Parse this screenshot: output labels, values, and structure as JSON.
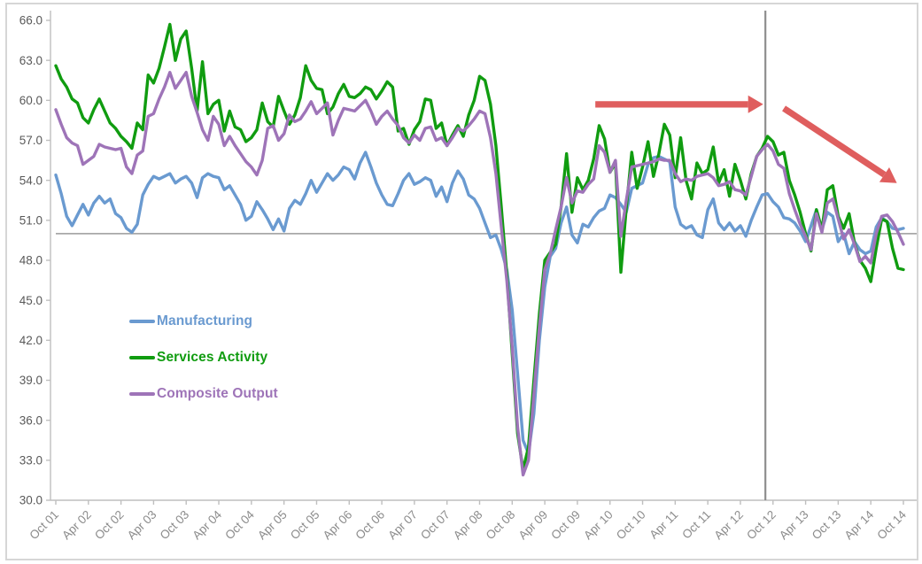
{
  "chart_data": {
    "type": "line",
    "title": "",
    "xlabel": "",
    "ylabel": "",
    "ylim": [
      30.0,
      66.0
    ],
    "y_step": 3.0,
    "y_tick_labels": [
      "66.0",
      "63.0",
      "60.0",
      "57.0",
      "54.0",
      "51.0",
      "48.0",
      "45.0",
      "42.0",
      "39.0",
      "36.0",
      "33.0",
      "30.0"
    ],
    "x_tick_labels": [
      "Oct 01",
      "Apr 02",
      "Oct 02",
      "Apr 03",
      "Oct 03",
      "Apr 04",
      "Oct 04",
      "Apr 05",
      "Oct 05",
      "Apr 06",
      "Oct 06",
      "Apr 07",
      "Oct 07",
      "Apr 08",
      "Oct 08",
      "Apr 09",
      "Oct 09",
      "Apr 10",
      "Oct 10",
      "Apr 11",
      "Oct 11",
      "Apr 12",
      "Oct 12",
      "Apr 13",
      "Oct 13",
      "Apr 14",
      "Oct 14"
    ],
    "x_months_per_tick": 6,
    "grid": "off",
    "legend_position": "inside-left-middle",
    "axis_color": "#bfbfbf",
    "y_label_color": "#595959",
    "x_label_color": "#8c8c8c",
    "series": [
      {
        "id": "manufacturing",
        "name": "Manufacturing",
        "color": "#6a9ad0",
        "values": [
          54.4,
          53.0,
          51.3,
          50.6,
          51.4,
          52.2,
          51.4,
          52.3,
          52.8,
          52.3,
          52.6,
          51.5,
          51.2,
          50.4,
          50.1,
          50.7,
          52.9,
          53.7,
          54.3,
          54.1,
          54.3,
          54.5,
          53.8,
          54.1,
          54.3,
          53.8,
          52.7,
          54.2,
          54.5,
          54.3,
          54.2,
          53.3,
          53.6,
          52.9,
          52.2,
          51.0,
          51.3,
          52.4,
          51.8,
          51.1,
          50.3,
          51.1,
          50.2,
          51.9,
          52.5,
          52.2,
          53.0,
          54.0,
          53.1,
          53.8,
          54.5,
          54.0,
          54.4,
          55.0,
          54.8,
          54.1,
          55.3,
          56.1,
          55.0,
          53.8,
          52.9,
          52.2,
          52.1,
          53.0,
          54.0,
          54.5,
          53.7,
          53.9,
          54.2,
          54.0,
          52.8,
          53.5,
          52.4,
          53.8,
          54.7,
          54.1,
          52.9,
          52.6,
          51.9,
          50.8,
          49.7,
          49.9,
          48.8,
          47.3,
          44.3,
          39.5,
          34.5,
          33.5,
          36.5,
          42.0,
          46.0,
          48.3,
          48.9,
          50.8,
          52.0,
          49.9,
          49.3,
          50.7,
          50.5,
          51.2,
          51.7,
          51.9,
          52.9,
          52.7,
          52.2,
          51.6,
          53.4,
          53.6,
          53.8,
          55.2,
          55.7,
          55.8,
          55.6,
          55.4,
          52.0,
          50.7,
          50.4,
          50.6,
          49.9,
          49.7,
          51.8,
          52.6,
          50.8,
          50.3,
          50.8,
          50.2,
          50.6,
          49.8,
          51.0,
          52.0,
          52.9,
          53.0,
          52.4,
          52.0,
          51.2,
          51.1,
          50.8,
          50.2,
          49.4,
          50.6,
          51.8,
          50.3,
          51.6,
          51.3,
          49.4,
          50.0,
          48.5,
          49.4,
          48.8,
          48.5,
          48.7,
          50.5,
          51.2,
          50.9,
          50.4,
          50.3,
          50.4
        ]
      },
      {
        "id": "services",
        "name": "Services Activity",
        "color": "#109c10",
        "values": [
          62.6,
          61.6,
          61.0,
          60.1,
          59.8,
          58.7,
          58.3,
          59.3,
          60.1,
          59.2,
          58.3,
          57.9,
          57.3,
          56.9,
          56.4,
          58.3,
          57.8,
          61.9,
          61.3,
          62.4,
          64.0,
          65.7,
          63.0,
          64.6,
          65.2,
          62.4,
          59.2,
          62.9,
          59.0,
          59.7,
          60.0,
          57.7,
          59.2,
          58.0,
          57.8,
          56.9,
          57.2,
          57.8,
          59.8,
          58.4,
          58.0,
          60.3,
          59.2,
          58.2,
          58.9,
          60.2,
          62.6,
          61.5,
          60.9,
          60.8,
          59.0,
          59.5,
          60.5,
          61.2,
          60.3,
          60.2,
          60.5,
          61.0,
          60.8,
          60.1,
          60.7,
          61.4,
          61.0,
          57.7,
          57.9,
          56.7,
          57.8,
          58.4,
          60.1,
          60.0,
          57.9,
          58.3,
          56.6,
          57.4,
          58.1,
          57.3,
          58.9,
          60.0,
          61.8,
          61.5,
          59.7,
          56.6,
          52.0,
          47.0,
          41.0,
          35.0,
          32.3,
          34.0,
          39.0,
          44.0,
          48.0,
          48.6,
          49.2,
          52.0,
          56.0,
          51.6,
          54.2,
          53.3,
          54.0,
          55.6,
          58.1,
          57.1,
          54.6,
          55.3,
          47.1,
          51.9,
          56.1,
          53.4,
          55.0,
          56.9,
          54.3,
          56.0,
          58.2,
          57.4,
          54.2,
          57.2,
          54.0,
          52.6,
          55.3,
          54.5,
          54.8,
          56.5,
          53.8,
          54.8,
          52.8,
          55.2,
          54.0,
          52.6,
          54.5,
          55.8,
          56.4,
          57.3,
          56.9,
          55.9,
          56.1,
          54.0,
          52.9,
          51.6,
          50.0,
          48.7,
          51.8,
          50.3,
          53.3,
          53.6,
          51.3,
          50.4,
          51.5,
          49.3,
          48.0,
          47.4,
          46.4,
          48.9,
          51.1,
          50.9,
          48.9,
          47.4,
          47.3
        ]
      },
      {
        "id": "composite",
        "name": "Composite Output",
        "color": "#9e74b8",
        "values": [
          59.3,
          58.2,
          57.2,
          56.8,
          56.6,
          55.2,
          55.5,
          55.8,
          56.7,
          56.5,
          56.4,
          56.3,
          56.4,
          55.0,
          54.5,
          55.9,
          56.2,
          58.8,
          59.0,
          60.1,
          61.0,
          62.1,
          60.9,
          61.5,
          62.1,
          60.3,
          59.1,
          57.8,
          57.0,
          58.8,
          58.2,
          56.6,
          57.3,
          56.6,
          56.0,
          55.4,
          55.0,
          54.4,
          55.5,
          57.9,
          58.1,
          57.0,
          57.5,
          58.9,
          58.4,
          58.6,
          59.2,
          59.9,
          59.0,
          59.4,
          59.8,
          57.4,
          58.5,
          59.4,
          59.3,
          59.2,
          59.6,
          60.0,
          59.2,
          58.2,
          58.8,
          59.2,
          58.6,
          58.1,
          57.2,
          56.8,
          57.4,
          57.0,
          57.9,
          58.0,
          57.0,
          57.2,
          56.6,
          57.2,
          57.9,
          57.7,
          58.1,
          58.6,
          59.2,
          59.0,
          57.2,
          54.5,
          50.5,
          46.5,
          41.5,
          35.5,
          31.9,
          33.0,
          38.0,
          43.0,
          47.3,
          48.5,
          50.3,
          52.0,
          54.2,
          52.3,
          53.2,
          53.1,
          53.7,
          54.1,
          56.6,
          56.1,
          54.6,
          55.5,
          49.8,
          52.5,
          55.0,
          55.1,
          55.2,
          55.3,
          55.4,
          55.6,
          55.5,
          55.5,
          54.5,
          53.9,
          54.1,
          54.0,
          54.3,
          54.4,
          54.5,
          54.2,
          53.6,
          53.7,
          53.9,
          53.3,
          53.2,
          52.9,
          54.3,
          55.8,
          56.3,
          56.7,
          56.2,
          55.2,
          54.9,
          53.0,
          51.8,
          50.7,
          49.8,
          48.8,
          51.5,
          50.1,
          52.3,
          52.6,
          51.1,
          49.6,
          50.3,
          49.2,
          47.9,
          48.3,
          47.8,
          50.0,
          51.3,
          51.4,
          50.9,
          50.1,
          49.2
        ]
      }
    ],
    "annotations": {
      "hline": {
        "value": 50.0,
        "color": "#a8a8a8"
      },
      "vline": {
        "month": 130.6,
        "color": "#8e8e8e"
      },
      "arrows": [
        {
          "id": "flat-trend-arrow",
          "from": {
            "month": 99.3,
            "value": 59.7
          },
          "to": {
            "month": 130.2,
            "value": 59.7
          },
          "color": "#df5e5e"
        },
        {
          "id": "decline-trend-arrow",
          "from": {
            "month": 134.0,
            "value": 59.4
          },
          "to": {
            "month": 154.8,
            "value": 53.8
          },
          "color": "#df5e5e"
        }
      ]
    }
  }
}
